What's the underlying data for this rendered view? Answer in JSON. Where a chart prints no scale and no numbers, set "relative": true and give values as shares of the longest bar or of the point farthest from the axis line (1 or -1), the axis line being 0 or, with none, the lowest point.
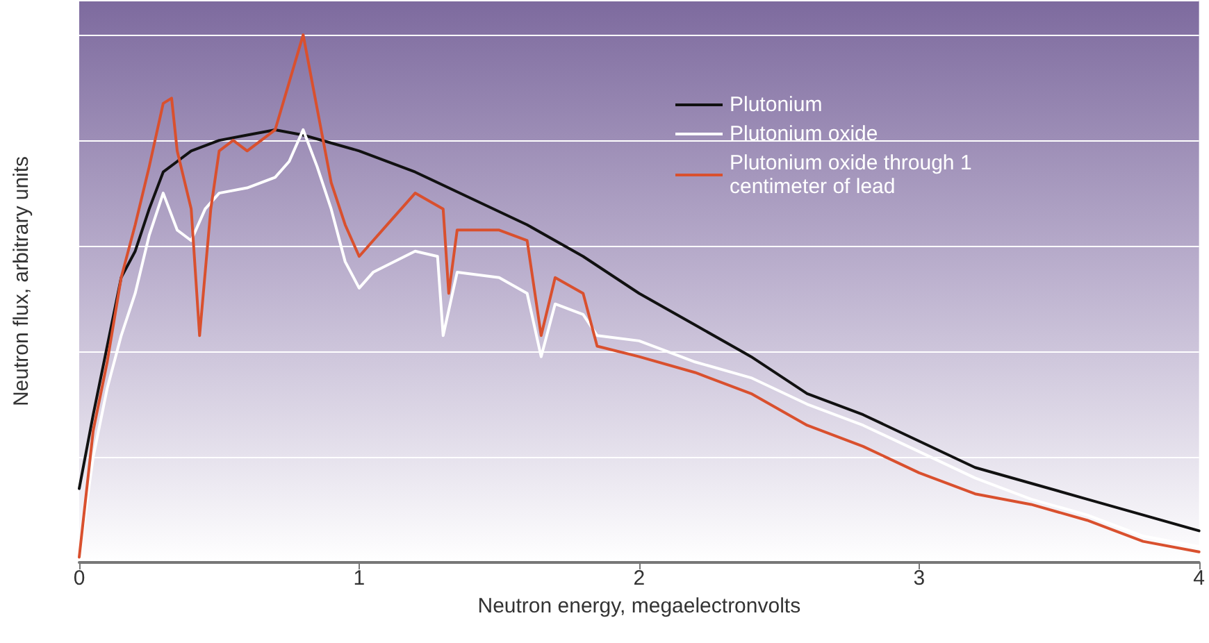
{
  "chart_data": {
    "type": "line",
    "relative": true,
    "xlabel": "Neutron energy, megaelectronvolts",
    "ylabel": "Neutron flux, arbitrary units",
    "xlim": [
      0,
      4
    ],
    "xticks": [
      0,
      1,
      2,
      3,
      4
    ],
    "grid": "y",
    "legend": "top right",
    "marker": "none",
    "line_style": "solid",
    "series": [
      {
        "name": "Plutonium",
        "color": "#111111",
        "x": [
          0,
          0.05,
          0.1,
          0.15,
          0.2,
          0.25,
          0.3,
          0.35,
          0.4,
          0.5,
          0.6,
          0.7,
          0.8,
          1.0,
          1.2,
          1.4,
          1.6,
          1.8,
          2.0,
          2.2,
          2.4,
          2.6,
          2.8,
          3.0,
          3.2,
          3.4,
          3.6,
          3.8,
          4.0
        ],
        "values": [
          0.14,
          0.28,
          0.41,
          0.54,
          0.59,
          0.67,
          0.74,
          0.76,
          0.78,
          0.8,
          0.81,
          0.82,
          0.81,
          0.78,
          0.74,
          0.69,
          0.64,
          0.58,
          0.51,
          0.45,
          0.39,
          0.32,
          0.28,
          0.23,
          0.18,
          0.15,
          0.12,
          0.09,
          0.06
        ]
      },
      {
        "name": "Plutonium oxide",
        "color": "#ffffff",
        "x": [
          0,
          0.05,
          0.1,
          0.15,
          0.2,
          0.25,
          0.3,
          0.35,
          0.4,
          0.45,
          0.5,
          0.6,
          0.7,
          0.75,
          0.8,
          0.85,
          0.9,
          0.95,
          1.0,
          1.05,
          1.2,
          1.28,
          1.3,
          1.35,
          1.5,
          1.6,
          1.65,
          1.7,
          1.8,
          1.85,
          2.0,
          2.2,
          2.4,
          2.6,
          2.8,
          3.0,
          3.2,
          3.4,
          3.6,
          3.8,
          4.0
        ],
        "values": [
          0.01,
          0.2,
          0.33,
          0.43,
          0.51,
          0.62,
          0.7,
          0.63,
          0.61,
          0.67,
          0.7,
          0.71,
          0.73,
          0.76,
          0.82,
          0.75,
          0.67,
          0.57,
          0.52,
          0.55,
          0.59,
          0.58,
          0.43,
          0.55,
          0.54,
          0.51,
          0.39,
          0.49,
          0.47,
          0.43,
          0.42,
          0.38,
          0.35,
          0.3,
          0.26,
          0.21,
          0.16,
          0.12,
          0.09,
          0.05,
          0.03
        ]
      },
      {
        "name": "Plutonium oxide through 1 centimeter of lead",
        "color": "#d9502e",
        "x": [
          0,
          0.05,
          0.1,
          0.15,
          0.2,
          0.25,
          0.3,
          0.33,
          0.35,
          0.4,
          0.43,
          0.47,
          0.5,
          0.55,
          0.6,
          0.7,
          0.75,
          0.8,
          0.85,
          0.9,
          0.95,
          1.0,
          1.1,
          1.2,
          1.3,
          1.32,
          1.35,
          1.5,
          1.6,
          1.65,
          1.7,
          1.8,
          1.85,
          2.0,
          2.2,
          2.4,
          2.6,
          2.8,
          3.0,
          3.2,
          3.4,
          3.6,
          3.8,
          4.0
        ],
        "values": [
          0.01,
          0.25,
          0.38,
          0.54,
          0.64,
          0.75,
          0.87,
          0.88,
          0.78,
          0.67,
          0.43,
          0.67,
          0.78,
          0.8,
          0.78,
          0.82,
          0.91,
          1,
          0.86,
          0.72,
          0.64,
          0.58,
          0.64,
          0.7,
          0.67,
          0.51,
          0.63,
          0.63,
          0.61,
          0.43,
          0.54,
          0.51,
          0.41,
          0.39,
          0.36,
          0.32,
          0.26,
          0.22,
          0.17,
          0.13,
          0.11,
          0.08,
          0.04,
          0.02
        ]
      }
    ]
  }
}
